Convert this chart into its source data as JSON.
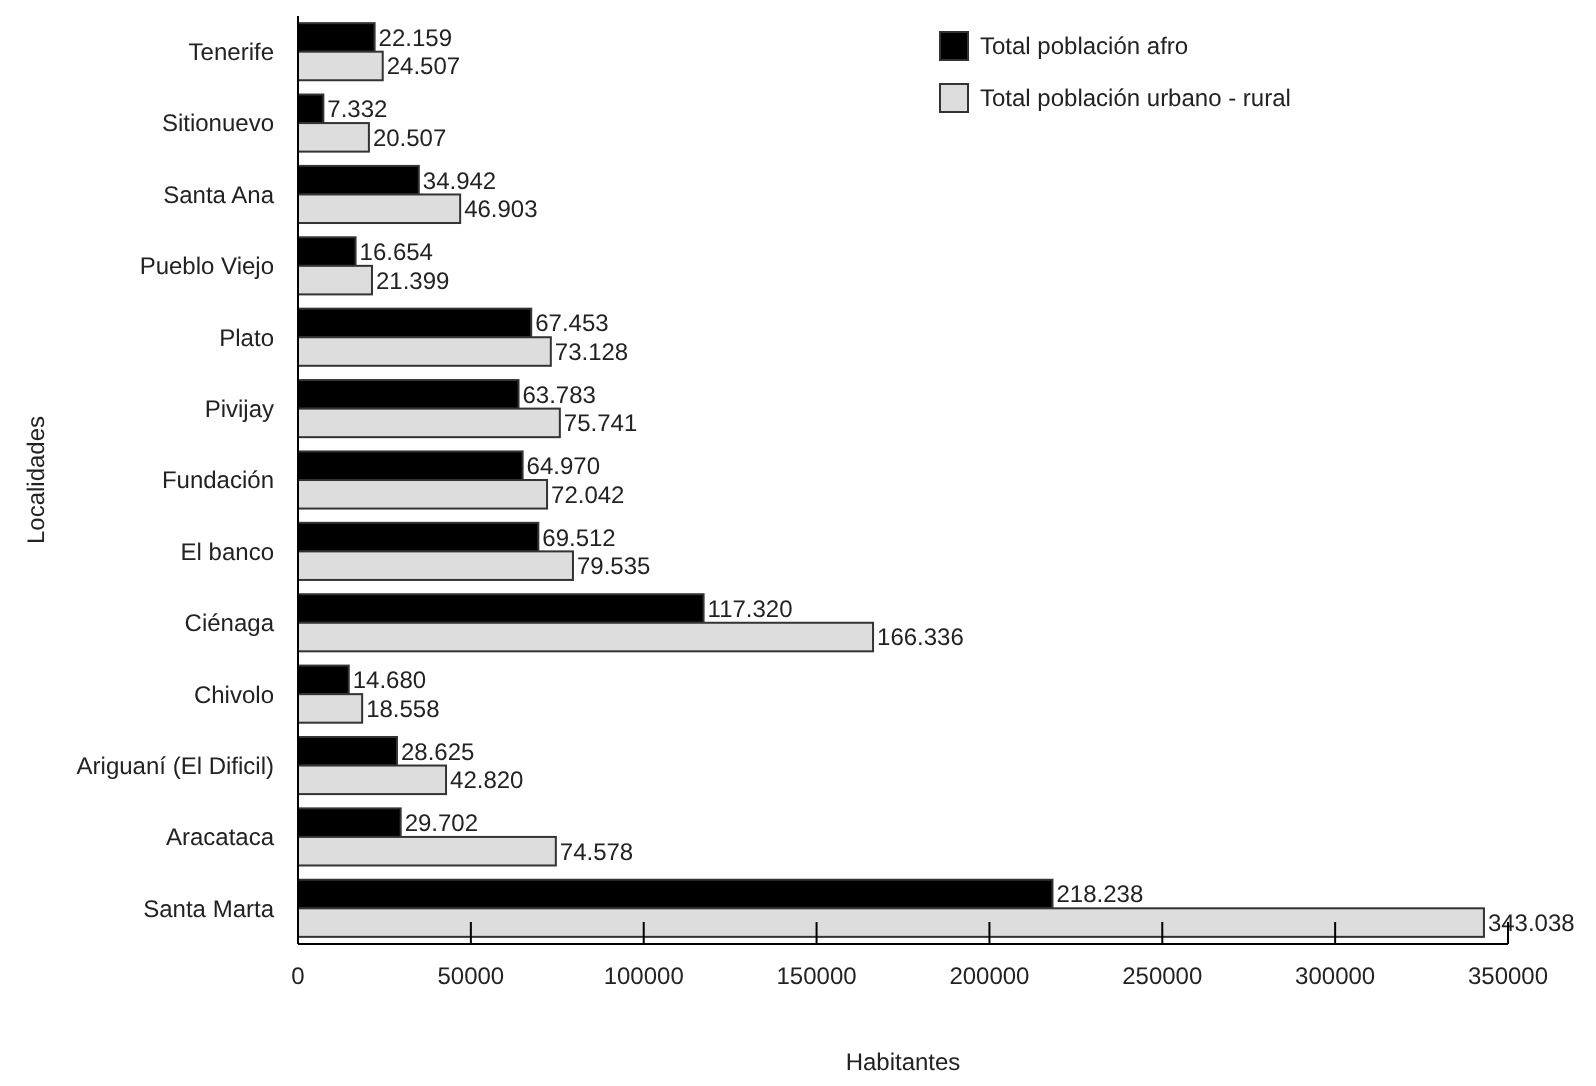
{
  "chart_data": {
    "type": "bar",
    "orientation": "horizontal",
    "xlabel": "Habitantes",
    "ylabel": "Localidades",
    "categories": [
      "Tenerife",
      "Sitionuevo",
      "Santa Ana",
      "Pueblo Viejo",
      "Plato",
      "Pivijay",
      "Fundación",
      "El banco",
      "Ciénaga",
      "Chivolo",
      "Ariguaní (El Dificil)",
      "Aracataca",
      "Santa Marta"
    ],
    "series": [
      {
        "name": "Total población afro",
        "color": "#000000",
        "values": [
          22159,
          7332,
          34942,
          16654,
          67453,
          63783,
          64970,
          69512,
          117320,
          14680,
          28625,
          29702,
          218238
        ],
        "value_labels": [
          "22.159",
          "7.332",
          "34.942",
          "16.654",
          "67.453",
          "63.783",
          "64.970",
          "69.512",
          "117.320",
          "14.680",
          "28.625",
          "29.702",
          "218.238"
        ]
      },
      {
        "name": "Total población urbano - rural",
        "color": "#dddddd",
        "values": [
          24507,
          20507,
          46903,
          21399,
          73128,
          75741,
          72042,
          79535,
          166336,
          18558,
          42820,
          74578,
          343038
        ],
        "value_labels": [
          "24.507",
          "20.507",
          "46.903",
          "21.399",
          "73.128",
          "75.741",
          "72.042",
          "79.535",
          "166.336",
          "18.558",
          "42.820",
          "74.578",
          "343.038"
        ]
      }
    ],
    "xlim": [
      0,
      350000
    ],
    "xticks": [
      0,
      50000,
      100000,
      150000,
      200000,
      250000,
      300000,
      350000
    ],
    "grid": false,
    "legend": "top right"
  }
}
